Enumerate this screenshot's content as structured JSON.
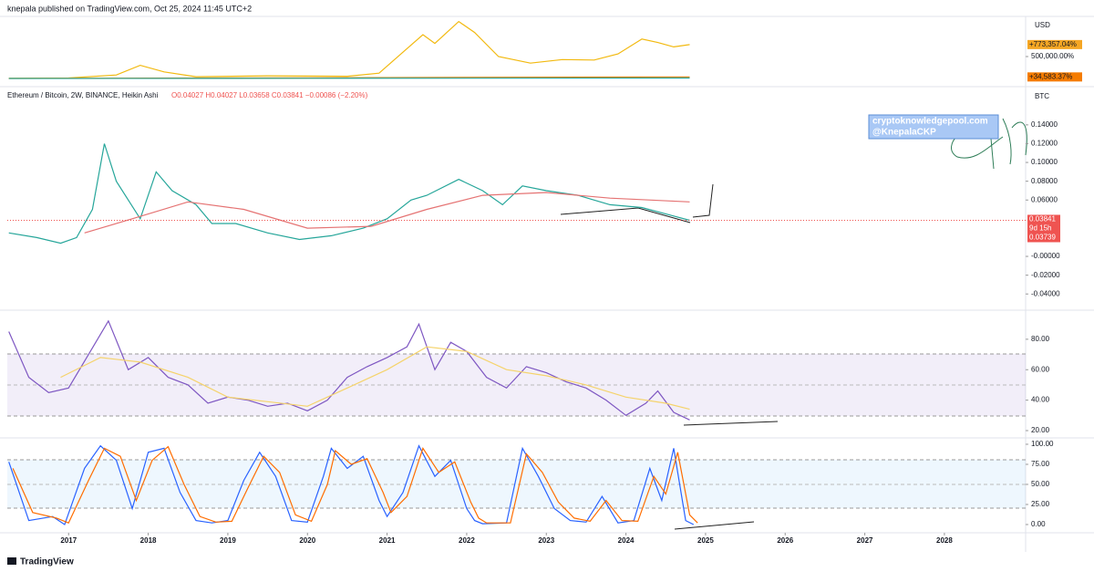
{
  "header": "knepala published on TradingView.com, Oct 25, 2024 11:45 UTC+2",
  "footer": "TradingView",
  "chart_data": [
    {
      "type": "line",
      "axis_label": "USD",
      "ylim": [
        -125000,
        1416000
      ],
      "yticks": [
        {
          "value": 500000,
          "label": "500,000.00%"
        }
      ],
      "last_labels": [
        {
          "value": 773357.04,
          "label": "+773,357.04%",
          "color": "#f5a623"
        },
        {
          "value": 34583.37,
          "label": "+34,583.37%",
          "color": "#f57c00"
        }
      ],
      "series": [
        {
          "color": "#f2b90f",
          "x": [
            2016.25,
            2017.0,
            2017.6,
            2017.9,
            2018.2,
            2018.6,
            2019.5,
            2020.5,
            2020.9,
            2021.2,
            2021.45,
            2021.6,
            2021.9,
            2022.1,
            2022.4,
            2022.8,
            2023.2,
            2023.6,
            2023.9,
            2024.2,
            2024.4,
            2024.6,
            2024.8
          ],
          "values": [
            2000,
            10000,
            80000,
            300000,
            150000,
            40000,
            60000,
            50000,
            120000,
            600000,
            1000000,
            800000,
            1300000,
            1050000,
            500000,
            350000,
            430000,
            420000,
            560000,
            900000,
            820000,
            720000,
            773357
          ]
        },
        {
          "color": "#f57c00",
          "x": [
            2016.25,
            2018.0,
            2020.0,
            2022.0,
            2024.8
          ],
          "values": [
            0,
            8000,
            12000,
            25000,
            34583
          ]
        },
        {
          "color": "#26a69a",
          "x": [
            2016.25,
            2020.0,
            2024.8
          ],
          "values": [
            0,
            5000,
            10000
          ]
        }
      ]
    },
    {
      "type": "line",
      "axis_label": "BTC",
      "legend_text": "Ethereum / Bitcoin, 2W, BINANCE, Heikin Ashi",
      "ohlc": "O0.04027  H0.04027  L0.03658  C0.03841  −0.00086 (−2.20%)",
      "annotations": [
        "cryptoknowledgepool.com",
        "@KnepalaCKP"
      ],
      "price_labels": [
        "0.03841",
        "9d 15h",
        "0.03739"
      ],
      "ylim": [
        -0.0553,
        0.1787
      ],
      "yticks": [
        {
          "value": 0.14,
          "label": "0.14000"
        },
        {
          "value": 0.12,
          "label": "0.12000"
        },
        {
          "value": 0.1,
          "label": "0.10000"
        },
        {
          "value": 0.08,
          "label": "0.08000"
        },
        {
          "value": 0.06,
          "label": "0.06000"
        },
        {
          "value": 0,
          "label": "-0.00000"
        },
        {
          "value": -0.02,
          "label": "-0.02000"
        },
        {
          "value": -0.04,
          "label": "-0.04000"
        }
      ],
      "series": [
        {
          "color": "#26a69a",
          "x": [
            2016.25,
            2016.6,
            2016.9,
            2017.1,
            2017.3,
            2017.45,
            2017.6,
            2017.9,
            2018.1,
            2018.3,
            2018.6,
            2018.8,
            2019.1,
            2019.5,
            2019.9,
            2020.3,
            2020.7,
            2021.0,
            2021.3,
            2021.5,
            2021.9,
            2022.2,
            2022.45,
            2022.7,
            2023.0,
            2023.4,
            2023.8,
            2024.2,
            2024.6,
            2024.8
          ],
          "values": [
            0.025,
            0.02,
            0.014,
            0.02,
            0.05,
            0.12,
            0.08,
            0.04,
            0.09,
            0.07,
            0.055,
            0.035,
            0.035,
            0.025,
            0.018,
            0.022,
            0.03,
            0.04,
            0.06,
            0.065,
            0.082,
            0.07,
            0.055,
            0.075,
            0.07,
            0.065,
            0.055,
            0.052,
            0.043,
            0.03841
          ]
        },
        {
          "color": "#e57373",
          "x": [
            2017.2,
            2017.8,
            2018.5,
            2019.2,
            2020.0,
            2020.8,
            2021.5,
            2022.2,
            2023.0,
            2023.8,
            2024.8
          ],
          "values": [
            0.025,
            0.04,
            0.058,
            0.05,
            0.03,
            0.032,
            0.05,
            0.065,
            0.068,
            0.062,
            0.058
          ]
        }
      ]
    },
    {
      "type": "line",
      "ylim": [
        16.4,
        97.9
      ],
      "yticks": [
        {
          "value": 80,
          "label": "80.00"
        },
        {
          "value": 60,
          "label": "60.00"
        },
        {
          "value": 40,
          "label": "40.00"
        },
        {
          "value": 20,
          "label": "20.00"
        }
      ],
      "series": [
        {
          "color": "#7e57c2",
          "x": [
            2016.25,
            2016.5,
            2016.75,
            2017.0,
            2017.25,
            2017.5,
            2017.75,
            2018.0,
            2018.25,
            2018.5,
            2018.75,
            2019.0,
            2019.25,
            2019.5,
            2019.75,
            2020.0,
            2020.25,
            2020.5,
            2020.75,
            2021.0,
            2021.25,
            2021.4,
            2021.6,
            2021.8,
            2022.0,
            2022.25,
            2022.5,
            2022.75,
            2023.0,
            2023.25,
            2023.5,
            2023.75,
            2024.0,
            2024.25,
            2024.4,
            2024.6,
            2024.8
          ],
          "values": [
            85,
            55,
            45,
            48,
            70,
            92,
            60,
            68,
            55,
            50,
            38,
            42,
            40,
            36,
            38,
            33,
            40,
            55,
            62,
            68,
            75,
            90,
            60,
            78,
            72,
            55,
            48,
            62,
            58,
            52,
            48,
            40,
            30,
            38,
            46,
            32,
            27
          ]
        },
        {
          "color": "#f5d36b",
          "x": [
            2016.9,
            2017.4,
            2017.9,
            2018.5,
            2019.0,
            2019.5,
            2020.0,
            2020.5,
            2021.0,
            2021.5,
            2022.0,
            2022.5,
            2023.0,
            2023.5,
            2024.0,
            2024.5,
            2024.8
          ],
          "values": [
            55,
            68,
            65,
            55,
            42,
            39,
            36,
            48,
            60,
            75,
            72,
            60,
            56,
            50,
            42,
            38,
            34
          ]
        }
      ]
    },
    {
      "type": "line",
      "ylim": [
        -8,
        106.8
      ],
      "xlim": [
        2016.23,
        2029.02
      ],
      "xticks": [
        2017,
        2018,
        2019,
        2020,
        2021,
        2022,
        2023,
        2024,
        2025,
        2026,
        2027,
        2028
      ],
      "yticks": [
        {
          "value": 100,
          "label": "100.00"
        },
        {
          "value": 75,
          "label": "75.00"
        },
        {
          "value": 50,
          "label": "50.00"
        },
        {
          "value": 25,
          "label": "25.00"
        },
        {
          "value": 0,
          "label": "0.00"
        }
      ],
      "series": [
        {
          "color": "#2962ff",
          "x": [
            2016.25,
            2016.5,
            2016.8,
            2016.95,
            2017.2,
            2017.4,
            2017.6,
            2017.8,
            2018.0,
            2018.2,
            2018.4,
            2018.6,
            2018.8,
            2019.0,
            2019.2,
            2019.4,
            2019.6,
            2019.8,
            2020.0,
            2020.2,
            2020.3,
            2020.5,
            2020.7,
            2020.9,
            2021.0,
            2021.2,
            2021.4,
            2021.6,
            2021.8,
            2022.0,
            2022.1,
            2022.2,
            2022.5,
            2022.7,
            2022.9,
            2023.1,
            2023.3,
            2023.5,
            2023.7,
            2023.9,
            2024.1,
            2024.3,
            2024.45,
            2024.6,
            2024.75,
            2024.85
          ],
          "values": [
            78,
            5,
            10,
            0,
            70,
            98,
            80,
            20,
            90,
            95,
            40,
            5,
            2,
            5,
            55,
            90,
            60,
            5,
            3,
            60,
            95,
            70,
            85,
            30,
            10,
            40,
            98,
            60,
            80,
            20,
            5,
            1,
            2,
            95,
            60,
            20,
            5,
            3,
            35,
            2,
            5,
            70,
            30,
            95,
            5,
            0
          ]
        },
        {
          "color": "#ff6d00",
          "x": [
            2016.3,
            2016.55,
            2016.85,
            2017.0,
            2017.25,
            2017.45,
            2017.65,
            2017.85,
            2018.05,
            2018.25,
            2018.45,
            2018.65,
            2018.85,
            2019.05,
            2019.25,
            2019.45,
            2019.65,
            2019.85,
            2020.05,
            2020.25,
            2020.35,
            2020.55,
            2020.75,
            2020.95,
            2021.05,
            2021.25,
            2021.45,
            2021.65,
            2021.85,
            2022.05,
            2022.15,
            2022.25,
            2022.55,
            2022.75,
            2022.95,
            2023.15,
            2023.35,
            2023.55,
            2023.75,
            2023.95,
            2024.15,
            2024.35,
            2024.5,
            2024.65,
            2024.8,
            2024.9
          ],
          "values": [
            70,
            15,
            8,
            2,
            55,
            95,
            85,
            30,
            80,
            97,
            50,
            10,
            3,
            4,
            45,
            85,
            65,
            12,
            4,
            50,
            92,
            75,
            82,
            40,
            15,
            35,
            95,
            65,
            78,
            28,
            8,
            2,
            2,
            88,
            65,
            28,
            8,
            4,
            30,
            5,
            4,
            60,
            38,
            90,
            12,
            2
          ]
        }
      ]
    }
  ]
}
